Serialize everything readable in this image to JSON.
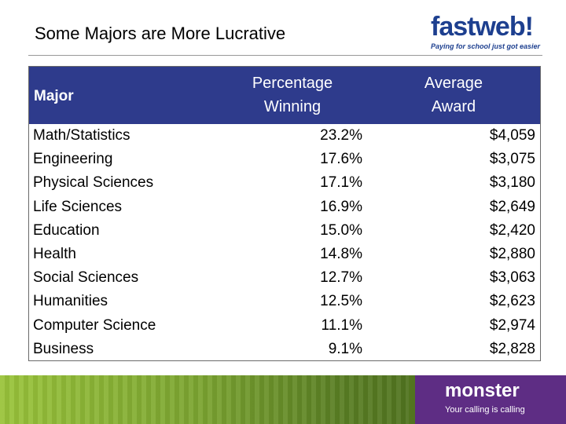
{
  "slide": {
    "title": "Some Majors are More Lucrative"
  },
  "logo": {
    "word_fast": "fast",
    "word_web": "web",
    "bang": "!",
    "tagline": "Paying for school just got easier",
    "color": "#1d3f8f"
  },
  "table": {
    "header_color": "#2e3b8c",
    "headers": {
      "major": "Major",
      "pct_line1": "Percentage",
      "pct_line2": "Winning",
      "avg_line1": "Average",
      "avg_line2": "Award"
    },
    "rows": [
      {
        "major": "Math/Statistics",
        "pct": "23.2%",
        "avg": "$4,059"
      },
      {
        "major": "Engineering",
        "pct": "17.6%",
        "avg": "$3,075"
      },
      {
        "major": "Physical Sciences",
        "pct": "17.1%",
        "avg": "$3,180"
      },
      {
        "major": "Life Sciences",
        "pct": "16.9%",
        "avg": "$2,649"
      },
      {
        "major": "Education",
        "pct": "15.0%",
        "avg": "$2,420"
      },
      {
        "major": "Health",
        "pct": "14.8%",
        "avg": "$2,880"
      },
      {
        "major": "Social Sciences",
        "pct": "12.7%",
        "avg": "$3,063"
      },
      {
        "major": "Humanities",
        "pct": "12.5%",
        "avg": "$2,623"
      },
      {
        "major": "Computer Science",
        "pct": "11.1%",
        "avg": "$2,974"
      },
      {
        "major": "Business",
        "pct": "9.1%",
        "avg": "$2,828"
      }
    ]
  },
  "footer": {
    "brand": "monster",
    "tagline": "Your calling is calling",
    "brand_color": "#5e2d84"
  }
}
